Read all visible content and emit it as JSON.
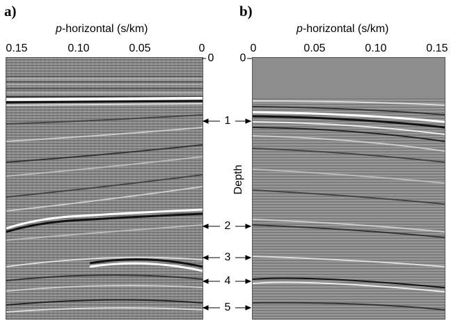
{
  "panel_a": {
    "letter": "a)",
    "axis_title_italic": "p",
    "axis_title_rest": "-horizontal (s/km)",
    "ticks": [
      "0.15",
      "0.10",
      "0.05",
      "0"
    ]
  },
  "panel_b": {
    "letter": "b)",
    "axis_title_italic": "p",
    "axis_title_rest": "-horizontal (s/km)",
    "ticks": [
      "0",
      "0.05",
      "0.10",
      "0.15"
    ]
  },
  "depth_axis": {
    "label": "Depth",
    "top_tick": "0",
    "markers": [
      "1",
      "2",
      "3",
      "4",
      "5"
    ]
  },
  "colors": {
    "seismic_background": "#8a8a8a",
    "reflector_dark": "#111111",
    "reflector_light": "#ffffff"
  }
}
